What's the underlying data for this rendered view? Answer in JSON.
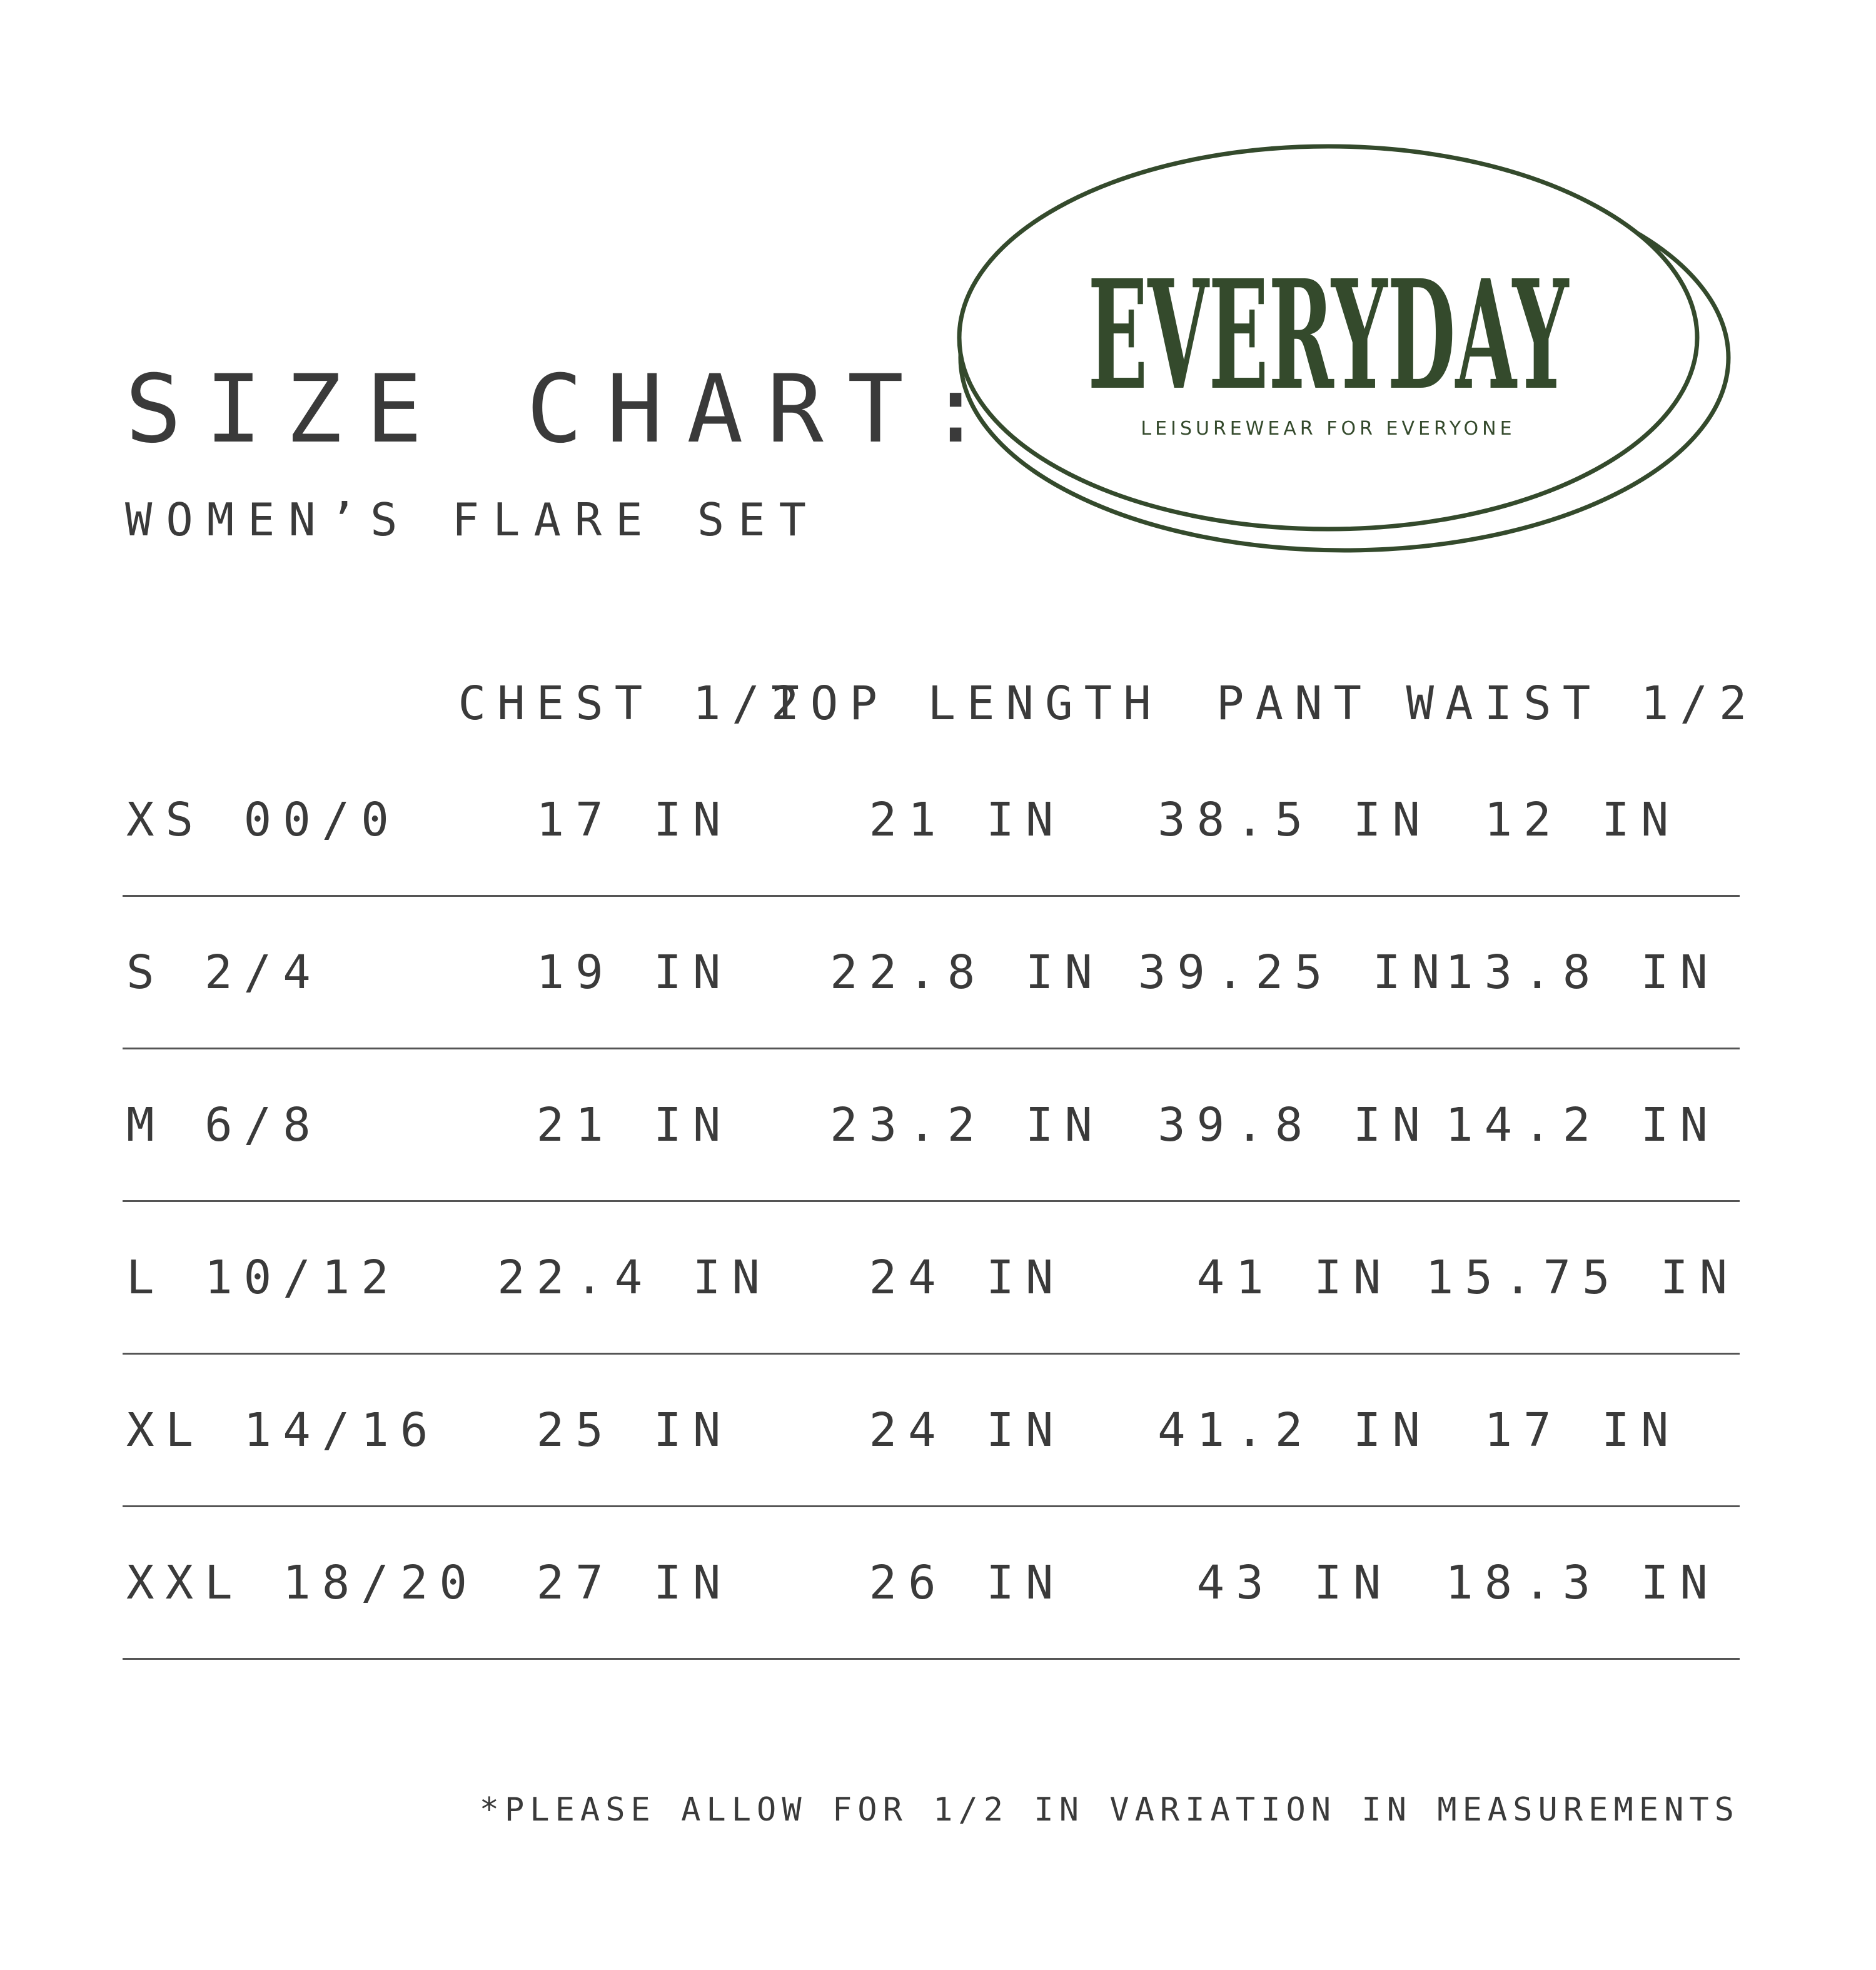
{
  "header": {
    "title": "SIZE CHART:",
    "subtitle": "WOMEN’S FLARE SET"
  },
  "logo": {
    "brand": "EVERYDAY",
    "tagline": "LEISUREWEAR FOR EVERYONE",
    "color": "#344a2c"
  },
  "table": {
    "columns": [
      "CHEST 1/2",
      "TOP LENGTH",
      "PANT",
      "WAIST 1/2"
    ],
    "rows": [
      {
        "size": "XS 00/0",
        "values": [
          "17 IN",
          "21 IN",
          "38.5 IN",
          "12 IN"
        ]
      },
      {
        "size": "S 2/4",
        "values": [
          "19 IN",
          "22.8 IN",
          "39.25 IN",
          "13.8 IN"
        ]
      },
      {
        "size": "M 6/8",
        "values": [
          "21 IN",
          "23.2 IN",
          "39.8 IN",
          "14.2 IN"
        ]
      },
      {
        "size": "L 10/12",
        "values": [
          "22.4 IN",
          "24 IN",
          "41 IN",
          "15.75 IN"
        ]
      },
      {
        "size": "XL 14/16",
        "values": [
          "25 IN",
          "24 IN",
          "41.2 IN",
          "17 IN"
        ]
      },
      {
        "size": "XXL 18/20",
        "values": [
          "27 IN",
          "26 IN",
          "43 IN",
          "18.3 IN"
        ]
      }
    ]
  },
  "footer": {
    "note": "*PLEASE ALLOW FOR 1/2 IN VARIATION IN MEASUREMENTS"
  }
}
